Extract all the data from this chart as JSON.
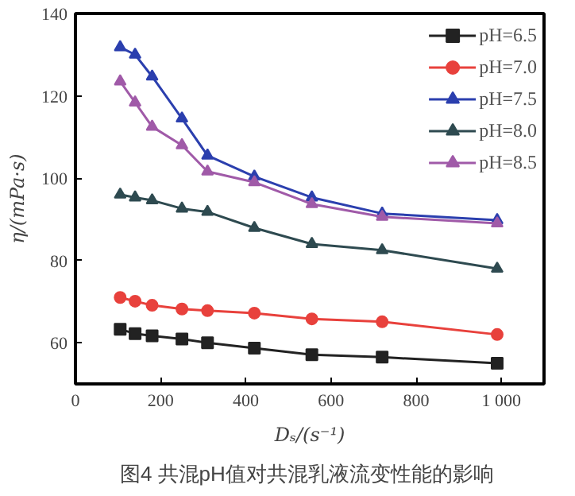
{
  "chart_data": {
    "type": "line",
    "xlabel": "Dₛ/(s⁻¹)",
    "ylabel": "η/(mPa·s)",
    "annotations": [
      "图4  共混pH值对共混乳液流变性能的影响"
    ],
    "xlim": [
      0,
      1100
    ],
    "xticks": [
      0,
      200,
      400,
      600,
      800,
      {
        "value": 1000,
        "label": "1 000"
      }
    ],
    "ylim": [
      50,
      140
    ],
    "yticks": [
      60,
      80,
      100,
      120,
      140
    ],
    "grid": false,
    "legend": "top right",
    "line_style": "solid",
    "x": [
      105,
      140,
      180,
      250,
      310,
      420,
      555,
      720,
      990
    ],
    "series": [
      {
        "name": "pH=6.5",
        "color": "#222222",
        "marker": "square",
        "values": [
          63.3,
          62.2,
          61.7,
          60.9,
          60,
          58.7,
          57.1,
          56.5,
          55
        ]
      },
      {
        "name": "pH=7.0",
        "color": "#e8413c",
        "marker": "circle",
        "values": [
          71,
          70.1,
          69.1,
          68.2,
          67.8,
          67.2,
          65.8,
          65.1,
          62
        ]
      },
      {
        "name": "pH=7.5",
        "color": "#2b3fae",
        "marker": "triangle",
        "values": [
          131.8,
          130,
          124.7,
          114.5,
          105.5,
          100.4,
          95.3,
          91.4,
          89.8
        ]
      },
      {
        "name": "pH=8.0",
        "color": "#2e4a50",
        "marker": "triangle",
        "values": [
          96,
          95.3,
          94.6,
          92.6,
          91.8,
          87.9,
          84,
          82.5,
          78
        ]
      },
      {
        "name": "pH=8.5",
        "color": "#a05aa8",
        "marker": "triangle",
        "values": [
          123.5,
          118.4,
          112.5,
          108,
          101.6,
          99,
          93.7,
          90.6,
          89
        ]
      }
    ]
  }
}
